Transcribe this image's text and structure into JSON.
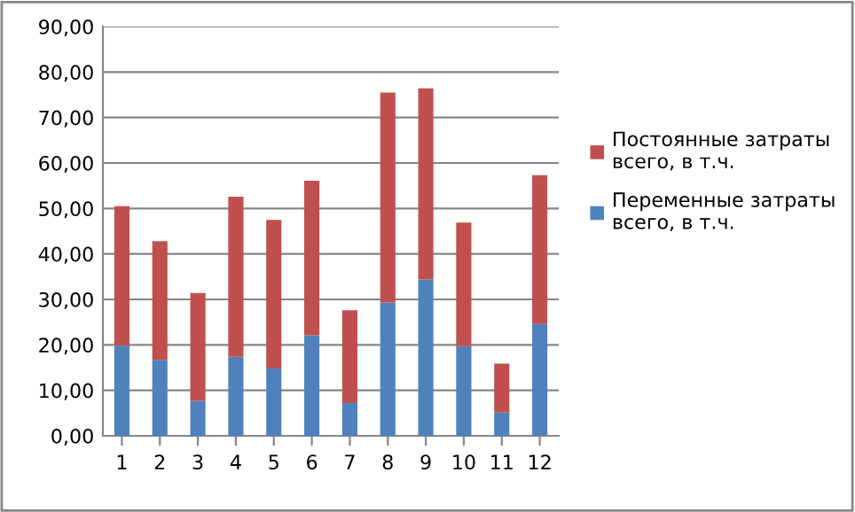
{
  "chart_data": {
    "type": "bar",
    "stacked": true,
    "categories": [
      "1",
      "2",
      "3",
      "4",
      "5",
      "6",
      "7",
      "8",
      "9",
      "10",
      "11",
      "12"
    ],
    "series": [
      {
        "name": "Переменные затраты всего, в т.ч.",
        "color": "#4f81bd",
        "values": [
          19.8,
          16.7,
          7.7,
          17.4,
          14.8,
          22.1,
          7.2,
          29.3,
          34.4,
          19.7,
          5.1,
          24.6
        ]
      },
      {
        "name": "Постоянные затраты всего, в т.ч.",
        "color": "#c0504d",
        "values": [
          30.7,
          26.1,
          23.7,
          35.2,
          32.7,
          34.0,
          20.4,
          46.2,
          42.0,
          27.2,
          10.8,
          32.7
        ]
      }
    ],
    "ylim": [
      0,
      90
    ],
    "yticks": [
      {
        "value": 0,
        "label": "0,00"
      },
      {
        "value": 10,
        "label": "10,00"
      },
      {
        "value": 20,
        "label": "20,00"
      },
      {
        "value": 30,
        "label": "30,00"
      },
      {
        "value": 40,
        "label": "40,00"
      },
      {
        "value": 50,
        "label": "50,00"
      },
      {
        "value": 60,
        "label": "60,00"
      },
      {
        "value": 70,
        "label": "70,00"
      },
      {
        "value": 80,
        "label": "80,00"
      },
      {
        "value": 90,
        "label": "90,00"
      }
    ],
    "grid": "y",
    "legend": "right"
  }
}
